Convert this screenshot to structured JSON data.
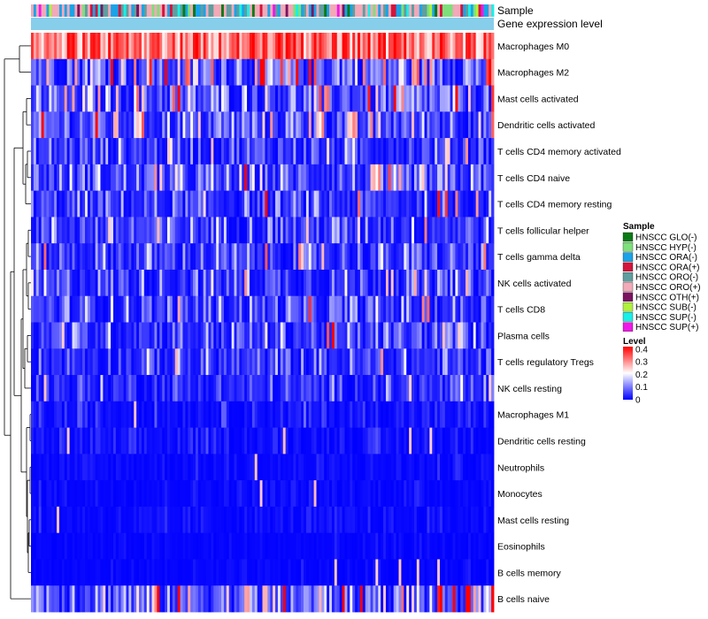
{
  "chart_data": {
    "type": "heatmap",
    "annotation_labels": [
      "Sample",
      "Gene expression level"
    ],
    "rows": [
      {
        "label": "Macrophages M0",
        "mean": 0.33
      },
      {
        "label": "Macrophages M2",
        "mean": 0.13
      },
      {
        "label": "Mast cells activated",
        "mean": 0.09
      },
      {
        "label": "Dendritic cells activated",
        "mean": 0.09
      },
      {
        "label": "T cells CD4 memory activated",
        "mean": 0.06
      },
      {
        "label": "T cells CD4 naive",
        "mean": 0.07
      },
      {
        "label": "T cells CD4 memory resting",
        "mean": 0.05
      },
      {
        "label": "T cells follicular helper",
        "mean": 0.07
      },
      {
        "label": "T cells gamma delta",
        "mean": 0.06
      },
      {
        "label": "NK cells activated",
        "mean": 0.06
      },
      {
        "label": "T cells CD8",
        "mean": 0.06
      },
      {
        "label": "Plasma cells",
        "mean": 0.06
      },
      {
        "label": "T cells regulatory  Tregs",
        "mean": 0.05
      },
      {
        "label": "NK cells resting",
        "mean": 0.04
      },
      {
        "label": "Macrophages M1",
        "mean": 0.02
      },
      {
        "label": "Dendritic cells resting",
        "mean": 0.015
      },
      {
        "label": "Neutrophils",
        "mean": 0.01
      },
      {
        "label": "Monocytes",
        "mean": 0.01
      },
      {
        "label": "Mast cells resting",
        "mean": 0.01
      },
      {
        "label": "Eosinophils",
        "mean": 0.005
      },
      {
        "label": "B cells memory",
        "mean": 0.005
      },
      {
        "label": "B cells naive",
        "mean": 0.12
      }
    ],
    "n_samples": 180,
    "sample_legend": {
      "title": "Sample",
      "items": [
        {
          "label": "HNSCC GLO(-)",
          "color": "#0a7a16"
        },
        {
          "label": "HNSCC HYP(-)",
          "color": "#7de07a"
        },
        {
          "label": "HNSCC ORA(-)",
          "color": "#1aa3e8"
        },
        {
          "label": "HNSCC ORA(+)",
          "color": "#d3143c"
        },
        {
          "label": "HNSCC ORO(-)",
          "color": "#5f9ea0"
        },
        {
          "label": "HNSCC ORO(+)",
          "color": "#f2a9b8"
        },
        {
          "label": "HNSCC OTH(+)",
          "color": "#7a1460"
        },
        {
          "label": "HNSCC SUB(-)",
          "color": "#b0f23c"
        },
        {
          "label": "HNSCC SUP(-)",
          "color": "#18f0e8"
        },
        {
          "label": "HNSCC SUP(+)",
          "color": "#f018e8"
        }
      ]
    },
    "level_legend": {
      "title": "Level",
      "ticks": [
        "0.4",
        "0.3",
        "0.2",
        "0.1",
        "0"
      ],
      "range": [
        0,
        0.42
      ],
      "colors": [
        "#0000ff",
        "#ffffff",
        "#ff0000"
      ]
    },
    "gene_expression_color": "#87ceeb"
  }
}
